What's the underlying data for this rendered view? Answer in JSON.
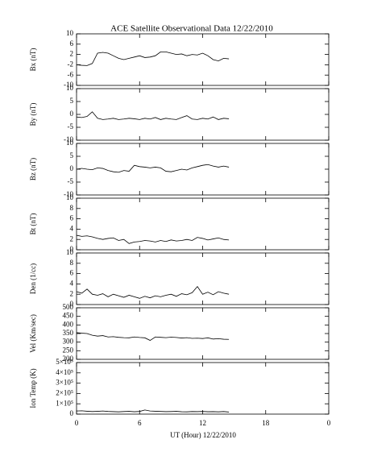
{
  "title": "ACE Satellite Observational Data   12/22/2010",
  "xlabel": "UT (Hour)  12/22/2010",
  "xlim": [
    0,
    24
  ],
  "xticks": [
    0,
    6,
    12,
    18,
    {
      "value": 24,
      "label": "0"
    }
  ],
  "chart_data": [
    {
      "type": "line",
      "ylabel": "Bx (nT)",
      "ylim": [
        -10,
        10
      ],
      "yticks": [
        -10,
        -6,
        -2,
        2,
        6,
        10
      ],
      "x": [
        0,
        0.5,
        1,
        1.5,
        2,
        2.5,
        3,
        3.5,
        4,
        4.5,
        5,
        5.5,
        6,
        6.5,
        7,
        7.5,
        8,
        8.5,
        9,
        9.5,
        10,
        10.5,
        11,
        11.5,
        12,
        12.5,
        13,
        13.5,
        14,
        14.5
      ],
      "values": [
        -2,
        -2.2,
        -2.3,
        -1.5,
        2.5,
        2.8,
        2.5,
        1.5,
        0.5,
        0,
        0.5,
        1,
        1.5,
        0.8,
        1,
        1.5,
        3,
        3,
        2.5,
        2,
        2.2,
        1.5,
        2,
        1.8,
        2.5,
        1.5,
        0,
        -0.5,
        0.5,
        0.3
      ]
    },
    {
      "type": "line",
      "ylabel": "By (nT)",
      "ylim": [
        -10,
        10
      ],
      "yticks": [
        -10,
        -5,
        0,
        5,
        10
      ],
      "x": [
        0,
        0.5,
        1,
        1.5,
        2,
        2.5,
        3,
        3.5,
        4,
        4.5,
        5,
        5.5,
        6,
        6.5,
        7,
        7.5,
        8,
        8.5,
        9,
        9.5,
        10,
        10.5,
        11,
        11.5,
        12,
        12.5,
        13,
        13.5,
        14,
        14.5
      ],
      "values": [
        -1,
        -1.2,
        -0.8,
        1,
        -1.5,
        -2,
        -1.8,
        -1.5,
        -2,
        -1.8,
        -1.5,
        -1.7,
        -2,
        -1.5,
        -1.8,
        -1.2,
        -2,
        -1.5,
        -1.8,
        -2,
        -1.2,
        -0.5,
        -1.8,
        -2,
        -1.5,
        -1.8,
        -1,
        -2,
        -1.5,
        -1.7
      ]
    },
    {
      "type": "line",
      "ylabel": "Bz (nT)",
      "ylim": [
        -10,
        10
      ],
      "yticks": [
        -10,
        -5,
        0,
        5,
        10
      ],
      "x": [
        0,
        0.5,
        1,
        1.5,
        2,
        2.5,
        3,
        3.5,
        4,
        4.5,
        5,
        5.5,
        6,
        6.5,
        7,
        7.5,
        8,
        8.5,
        9,
        9.5,
        10,
        10.5,
        11,
        11.5,
        12,
        12.5,
        13,
        13.5,
        14,
        14.5
      ],
      "values": [
        0,
        0.3,
        0,
        -0.2,
        0.5,
        0.3,
        -0.5,
        -1,
        -1.2,
        -0.5,
        -0.8,
        1.5,
        1,
        0.8,
        0.5,
        0.8,
        0.5,
        -0.8,
        -1,
        -0.5,
        0,
        -0.3,
        0.5,
        1,
        1.5,
        1.8,
        1.2,
        0.8,
        1.2,
        0.8
      ]
    },
    {
      "type": "line",
      "ylabel": "Bt (nT)",
      "ylim": [
        0,
        10
      ],
      "yticks": [
        0,
        2,
        4,
        6,
        8,
        10
      ],
      "x": [
        0,
        0.5,
        1,
        1.5,
        2,
        2.5,
        3,
        3.5,
        4,
        4.5,
        5,
        5.5,
        6,
        6.5,
        7,
        7.5,
        8,
        8.5,
        9,
        9.5,
        10,
        10.5,
        11,
        11.5,
        12,
        12.5,
        13,
        13.5,
        14,
        14.5
      ],
      "values": [
        2.8,
        2.6,
        2.7,
        2.5,
        2.2,
        2,
        2.2,
        2.3,
        1.8,
        2,
        1.2,
        1.5,
        1.6,
        1.8,
        1.7,
        1.5,
        1.8,
        1.6,
        1.9,
        1.7,
        1.8,
        2,
        1.8,
        2.4,
        2.2,
        1.9,
        2.1,
        2.3,
        2,
        1.9
      ]
    },
    {
      "type": "line",
      "ylabel": "Den (1/cc)",
      "ylim": [
        0,
        10
      ],
      "yticks": [
        0,
        2,
        4,
        6,
        8,
        10
      ],
      "x": [
        0,
        0.5,
        1,
        1.5,
        2,
        2.5,
        3,
        3.5,
        4,
        4.5,
        5,
        5.5,
        6,
        6.5,
        7,
        7.5,
        8,
        8.5,
        9,
        9.5,
        10,
        10.5,
        11,
        11.5,
        12,
        12.5,
        13,
        13.5,
        14,
        14.5
      ],
      "values": [
        2.5,
        2.2,
        3,
        2,
        1.8,
        2.1,
        1.5,
        2,
        1.7,
        1.4,
        1.8,
        1.5,
        1.2,
        1.6,
        1.3,
        1.7,
        1.5,
        1.8,
        2,
        1.6,
        2.1,
        1.9,
        2.3,
        3.5,
        2,
        2.4,
        1.9,
        2.5,
        2.2,
        2
      ]
    },
    {
      "type": "line",
      "ylabel": "Vel (Km/sec)",
      "ylim": [
        200,
        500
      ],
      "yticks": [
        200,
        250,
        300,
        350,
        400,
        450,
        500
      ],
      "x": [
        0,
        0.5,
        1,
        1.5,
        2,
        2.5,
        3,
        3.5,
        4,
        4.5,
        5,
        5.5,
        6,
        6.5,
        7,
        7.5,
        8,
        8.5,
        9,
        9.5,
        10,
        10.5,
        11,
        11.5,
        12,
        12.5,
        13,
        13.5,
        14,
        14.5
      ],
      "values": [
        355,
        352,
        350,
        340,
        335,
        338,
        330,
        332,
        328,
        326,
        325,
        330,
        327,
        325,
        310,
        330,
        328,
        326,
        329,
        327,
        324,
        326,
        322,
        323,
        321,
        325,
        318,
        320,
        317,
        316
      ]
    },
    {
      "type": "line",
      "ylabel": "Ion Temp (K)",
      "ylim": [
        0,
        500000
      ],
      "yticks": [
        0,
        {
          "value": 100000,
          "label": "1×10⁵"
        },
        {
          "value": 200000,
          "label": "2×10⁵"
        },
        {
          "value": 300000,
          "label": "3×10⁵"
        },
        {
          "value": 400000,
          "label": "4×10⁵"
        },
        {
          "value": 500000,
          "label": "5×10⁵"
        }
      ],
      "x": [
        0,
        0.5,
        1,
        1.5,
        2,
        2.5,
        3,
        3.5,
        4,
        4.5,
        5,
        5.5,
        6,
        6.5,
        7,
        7.5,
        8,
        8.5,
        9,
        9.5,
        10,
        10.5,
        11,
        11.5,
        12,
        12.5,
        13,
        13.5,
        14,
        14.5
      ],
      "values": [
        30000,
        32000,
        28000,
        25000,
        27000,
        30000,
        26000,
        24000,
        22000,
        25000,
        27000,
        23000,
        26000,
        40000,
        30000,
        28000,
        26000,
        24000,
        25000,
        27000,
        23000,
        22000,
        25000,
        24000,
        26000,
        23000,
        24000,
        22000,
        25000,
        20000
      ]
    }
  ]
}
